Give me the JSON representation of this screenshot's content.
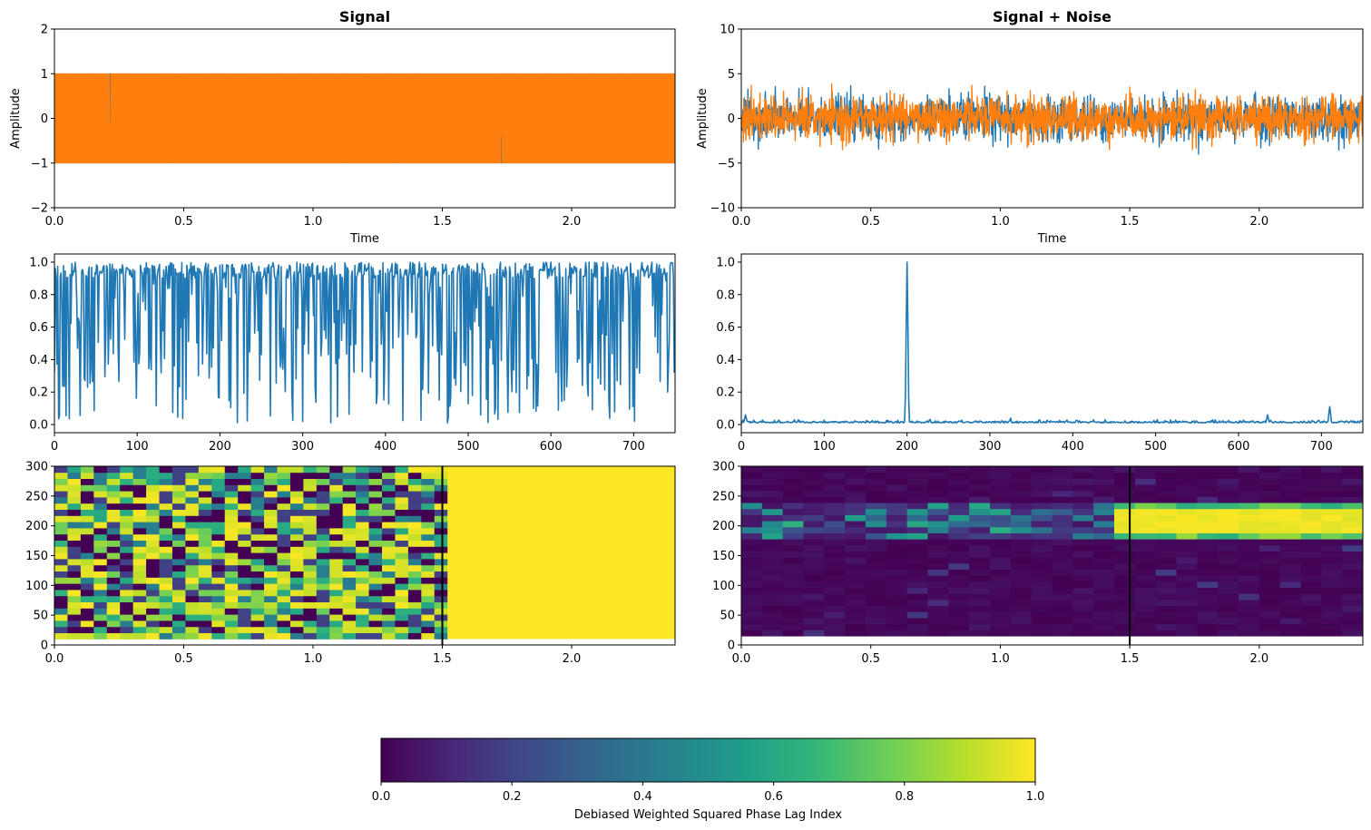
{
  "colors": {
    "series_blue": "#1f77b4",
    "series_orange": "#ff7f0e",
    "colormap": [
      "#440154",
      "#482878",
      "#3e4a89",
      "#31688e",
      "#26828e",
      "#1f9e89",
      "#35b779",
      "#6ece58",
      "#b5de2b",
      "#fde725"
    ]
  },
  "chart_data": [
    {
      "id": "signal",
      "type": "line",
      "title": "Signal",
      "xlabel": "Time",
      "ylabel": "Amplitude",
      "xlim": [
        0,
        2.4
      ],
      "ylim": [
        -2,
        2
      ],
      "xticks": [
        0.0,
        0.5,
        1.0,
        1.5,
        2.0
      ],
      "xtick_labels": [
        "0.0",
        "0.5",
        "1.0",
        "1.5",
        "2.0"
      ],
      "yticks": [
        -2,
        -1,
        0,
        1,
        2
      ],
      "ytick_labels": [
        "−2",
        "−1",
        "0",
        "1",
        "2"
      ],
      "series_envelope": [
        {
          "color": "blue",
          "y_min": -1,
          "y_max": 1
        },
        {
          "color": "orange",
          "y_min": -1,
          "y_max": 1
        }
      ]
    },
    {
      "id": "signal_noise",
      "type": "line",
      "title": "Signal + Noise",
      "xlabel": "Time",
      "ylabel": "Amplitude",
      "xlim": [
        0,
        2.4
      ],
      "ylim": [
        -10,
        10
      ],
      "xticks": [
        0.0,
        0.5,
        1.0,
        1.5,
        2.0
      ],
      "xtick_labels": [
        "0.0",
        "0.5",
        "1.0",
        "1.5",
        "2.0"
      ],
      "yticks": [
        -10,
        -5,
        0,
        5,
        10
      ],
      "ytick_labels": [
        "−10",
        "−5",
        "0",
        "5",
        "10"
      ],
      "series_envelope": [
        {
          "color": "blue",
          "y_min": -4,
          "y_max": 4.3
        },
        {
          "color": "orange",
          "y_min": -3.5,
          "y_max": 4.3
        }
      ]
    },
    {
      "id": "spectrum_signal",
      "type": "line",
      "xlim": [
        0,
        750
      ],
      "ylim": [
        -0.05,
        1.05
      ],
      "xticks": [
        0,
        100,
        200,
        300,
        400,
        500,
        600,
        700
      ],
      "xtick_labels": [
        "0",
        "100",
        "200",
        "300",
        "400",
        "500",
        "600",
        "700"
      ],
      "yticks": [
        0.0,
        0.2,
        0.4,
        0.6,
        0.8,
        1.0
      ],
      "ytick_labels": [
        "0.0",
        "0.2",
        "0.4",
        "0.6",
        "0.8",
        "1.0"
      ],
      "series_range": {
        "y_min": 0.0,
        "y_max": 1.0
      }
    },
    {
      "id": "spectrum_noise",
      "type": "line",
      "xlim": [
        0,
        750
      ],
      "ylim": [
        -0.05,
        1.05
      ],
      "xticks": [
        0,
        100,
        200,
        300,
        400,
        500,
        600,
        700
      ],
      "xtick_labels": [
        "0",
        "100",
        "200",
        "300",
        "400",
        "500",
        "600",
        "700"
      ],
      "yticks": [
        0.0,
        0.2,
        0.4,
        0.6,
        0.8,
        1.0
      ],
      "ytick_labels": [
        "0.0",
        "0.2",
        "0.4",
        "0.6",
        "0.8",
        "1.0"
      ],
      "peaks": [
        {
          "x": 200,
          "y": 1.0
        },
        {
          "x": 710,
          "y": 0.11
        },
        {
          "x": 635,
          "y": 0.06
        },
        {
          "x": 5,
          "y": 0.06
        }
      ],
      "baseline": 0.01
    },
    {
      "id": "heatmap_signal",
      "type": "heatmap",
      "xlim": [
        0,
        2.4
      ],
      "ylim": [
        0,
        300
      ],
      "xticks": [
        0.0,
        0.5,
        1.0,
        1.5,
        2.0
      ],
      "xtick_labels": [
        "0.0",
        "0.5",
        "1.0",
        "1.5",
        "2.0"
      ],
      "yticks": [
        0,
        50,
        100,
        150,
        200,
        250,
        300
      ],
      "ytick_labels": [
        "0",
        "50",
        "100",
        "150",
        "200",
        "250",
        "300"
      ],
      "x_range": [
        0,
        2.4
      ],
      "y_range": [
        10,
        300
      ],
      "uniform_after_x": 1.52,
      "uniform_value": 1.0,
      "vline_x": 1.5
    },
    {
      "id": "heatmap_noise",
      "type": "heatmap",
      "xlim": [
        0,
        2.4
      ],
      "ylim": [
        0,
        300
      ],
      "xticks": [
        0.0,
        0.5,
        1.0,
        1.5,
        2.0
      ],
      "xtick_labels": [
        "0.0",
        "0.5",
        "1.0",
        "1.5",
        "2.0"
      ],
      "yticks": [
        0,
        50,
        100,
        150,
        200,
        250,
        300
      ],
      "ytick_labels": [
        "0",
        "50",
        "100",
        "150",
        "200",
        "250",
        "300"
      ],
      "x_range": [
        0,
        2.4
      ],
      "y_range": [
        15,
        300
      ],
      "band_y": [
        180,
        235
      ],
      "band_peak_y": [
        190,
        225
      ],
      "band_start_x": 1.48,
      "vline_x": 1.5
    },
    {
      "id": "colorbar",
      "type": "colorbar",
      "label": "Debiased Weighted Squared Phase Lag Index",
      "range": [
        0.0,
        1.0
      ],
      "ticks": [
        0.0,
        0.2,
        0.4,
        0.6,
        0.8,
        1.0
      ],
      "tick_labels": [
        "0.0",
        "0.2",
        "0.4",
        "0.6",
        "0.8",
        "1.0"
      ]
    }
  ]
}
